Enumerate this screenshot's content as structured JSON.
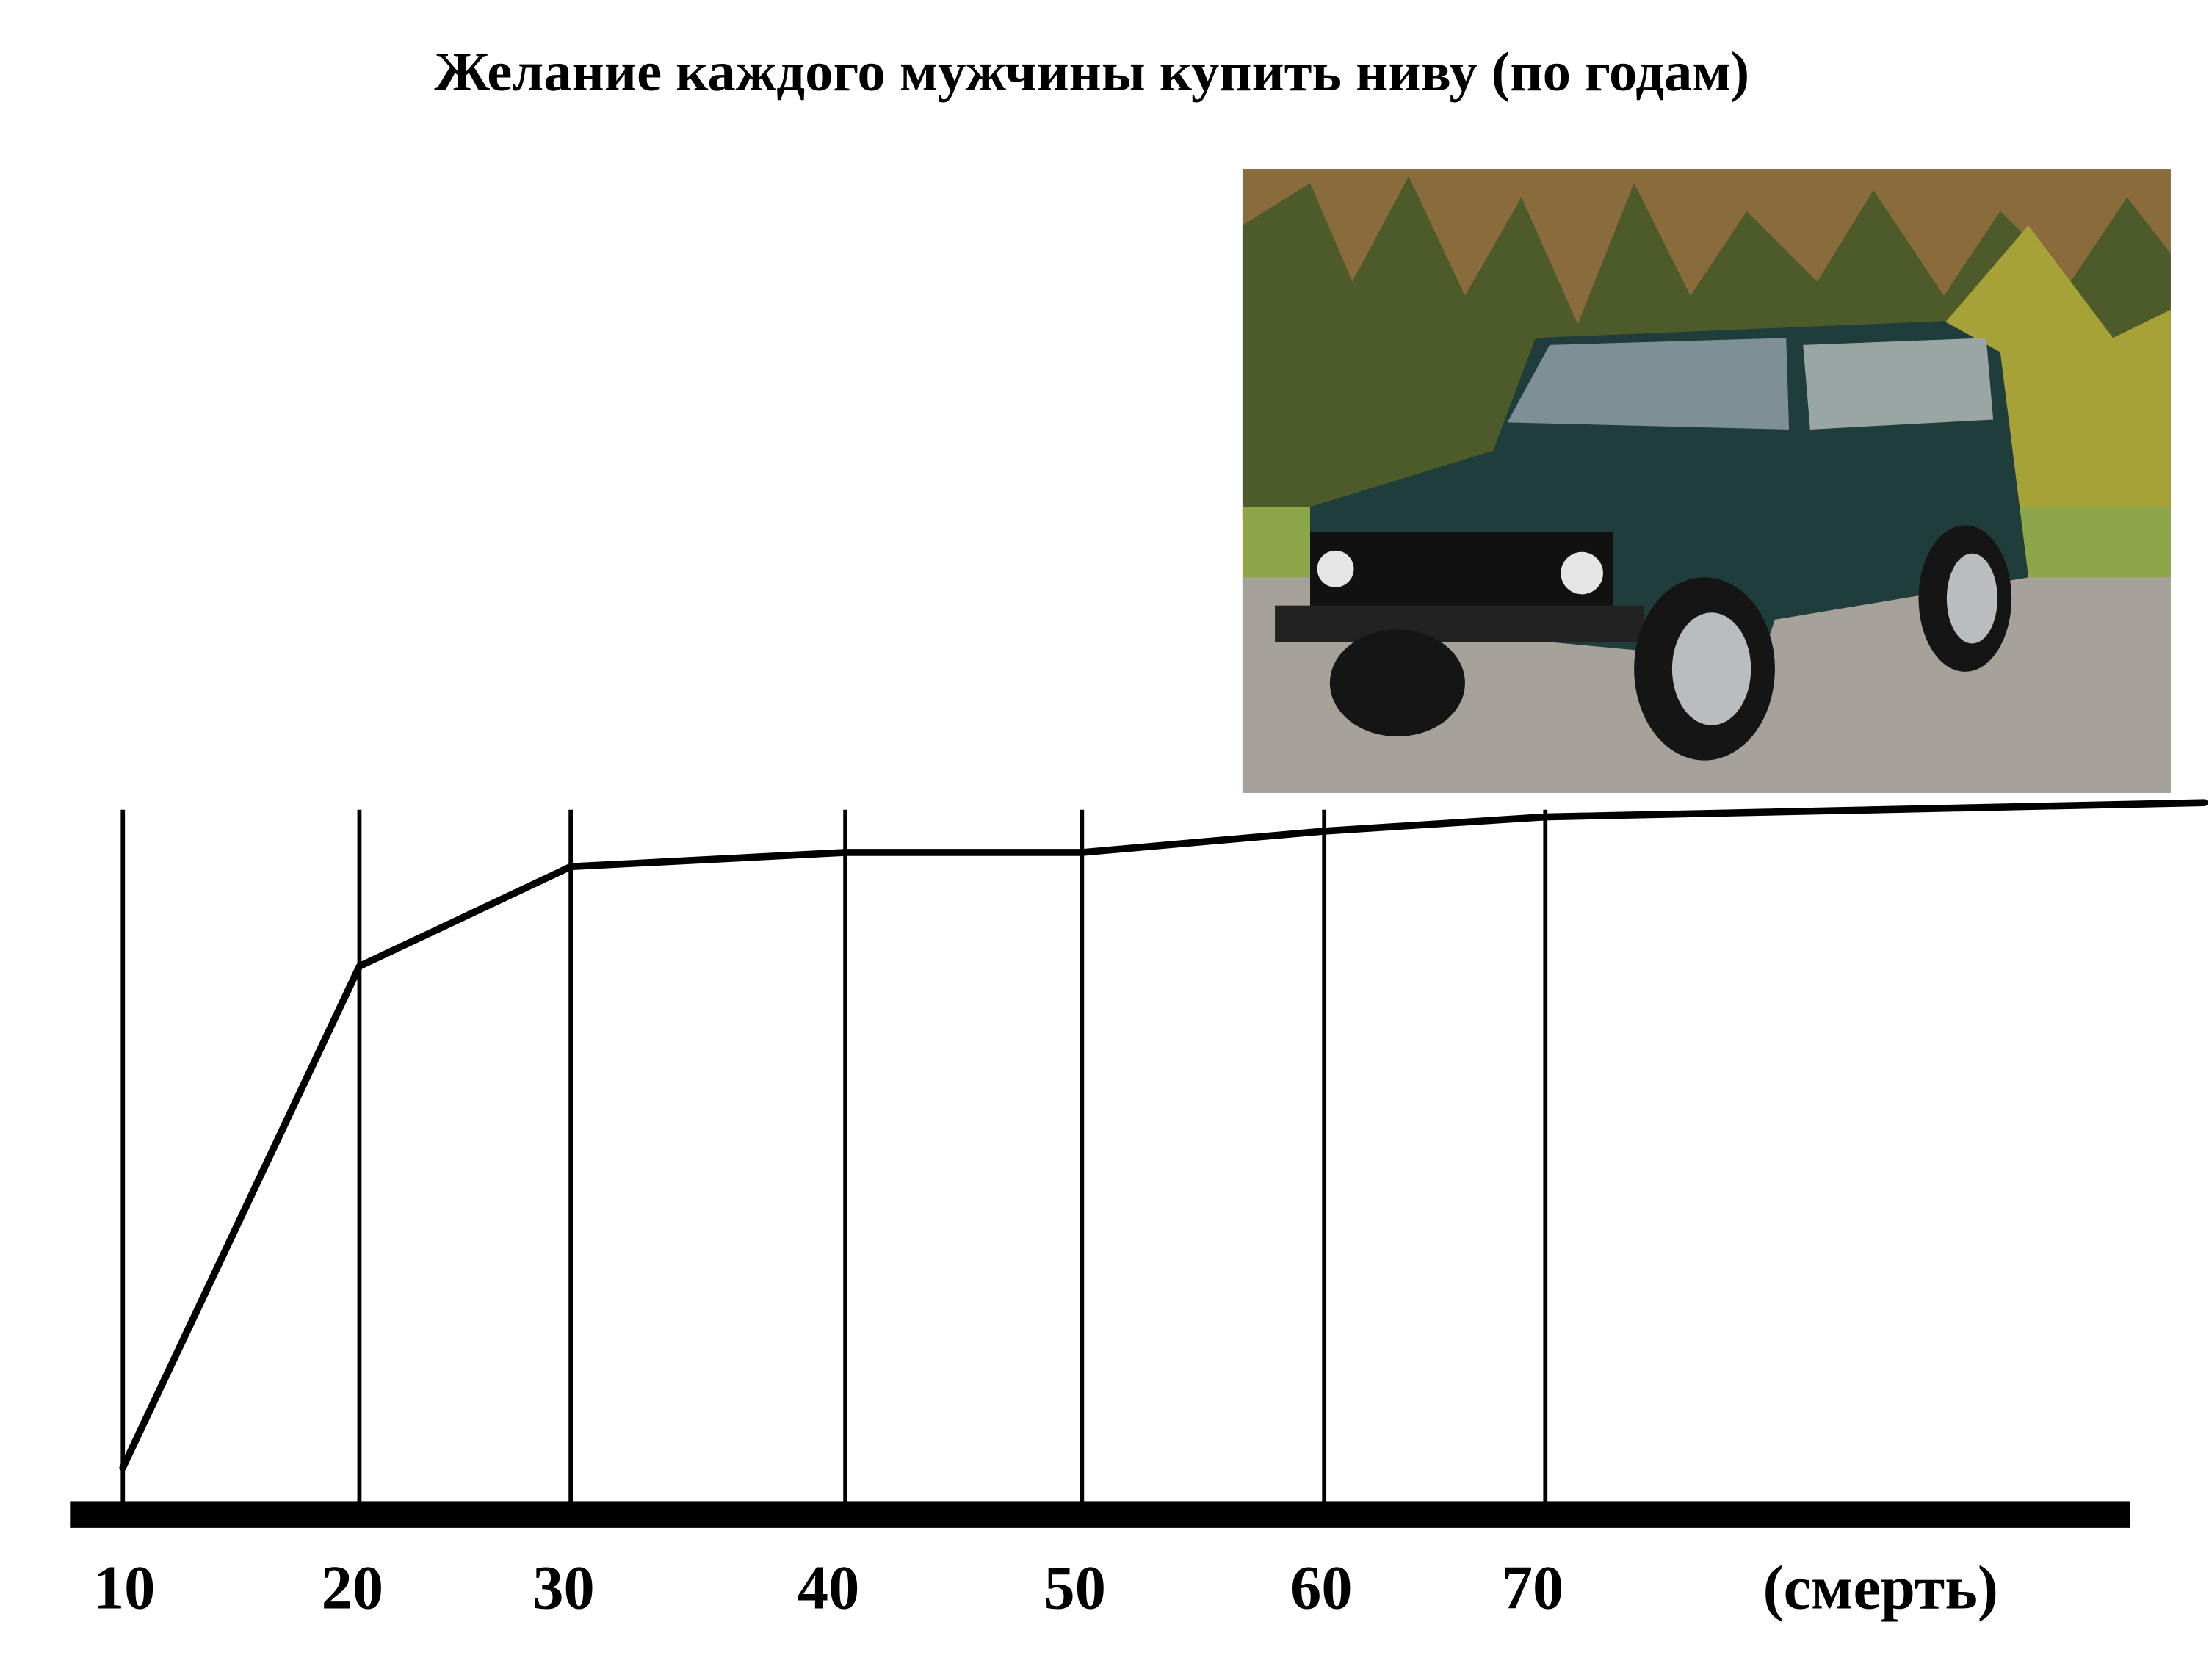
{
  "chart_data": {
    "type": "line",
    "title": "Желание каждого мужчины купить ниву (по годам)",
    "categories": [
      "10",
      "20",
      "30",
      "40",
      "50",
      "60",
      "70",
      "(смерть)"
    ],
    "series": [
      {
        "color": "#000000",
        "values": [
          6.5,
          77,
          91,
          93,
          93,
          96,
          98,
          100
        ]
      }
    ],
    "ylim": [
      0,
      100
    ],
    "grid": true
  }
}
